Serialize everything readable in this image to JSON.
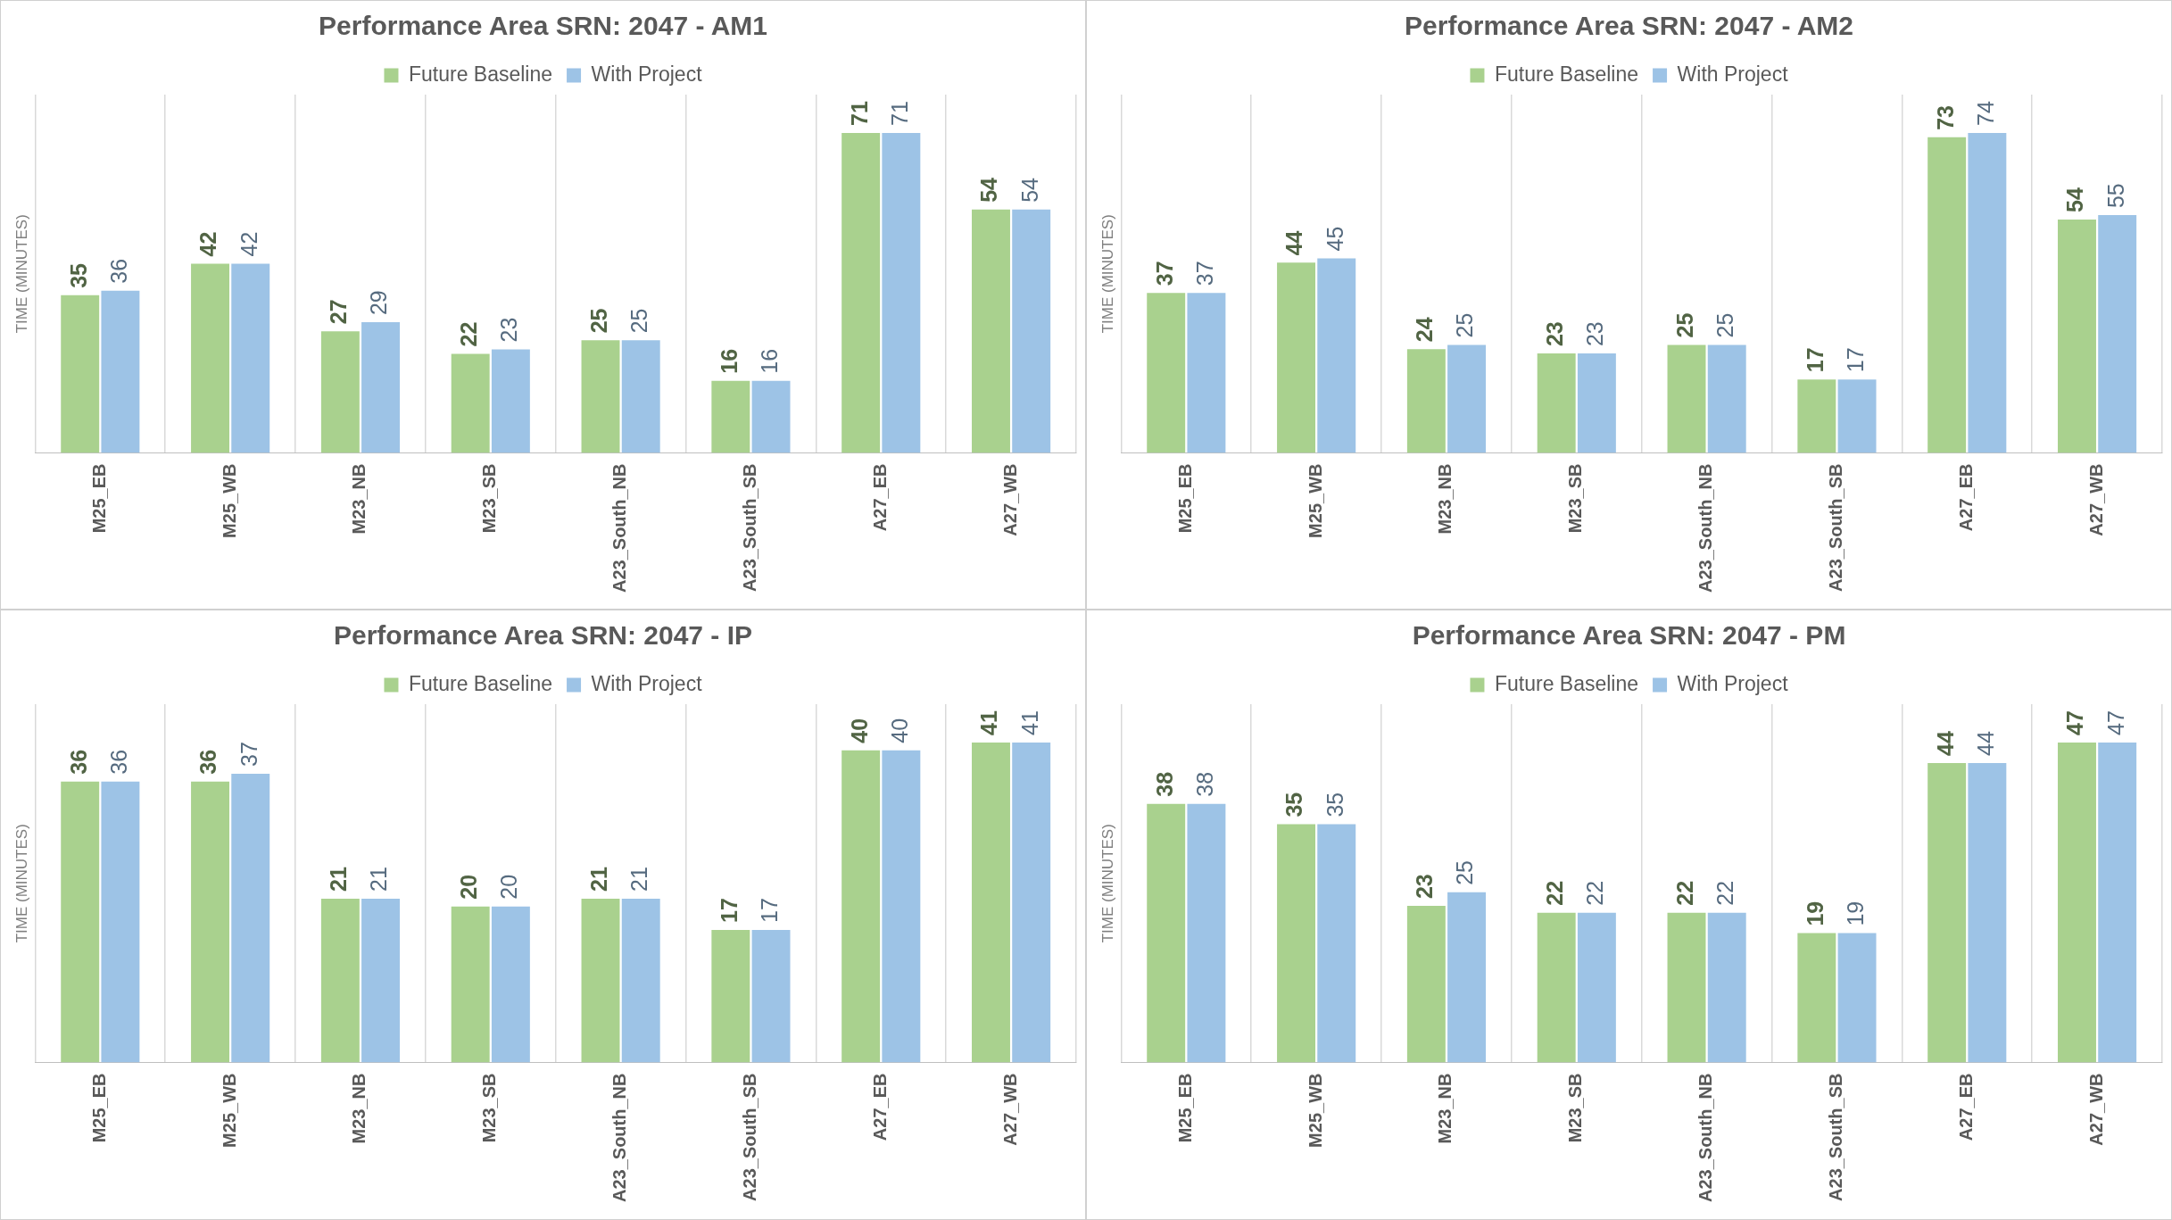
{
  "chart_data": [
    {
      "type": "bar",
      "title": "Performance Area SRN: 2047 - AM1",
      "ylabel": "TIME (MINUTES)",
      "categories": [
        "M25_EB",
        "M25_WB",
        "M23_NB",
        "M23_SB",
        "A23_South_NB",
        "A23_South_SB",
        "A27_EB",
        "A27_WB"
      ],
      "series": [
        {
          "name": "Future Baseline",
          "color": "#a9d18e",
          "values": [
            35,
            42,
            27,
            22,
            25,
            16,
            71,
            54
          ]
        },
        {
          "name": "With Project",
          "color": "#9dc3e6",
          "values": [
            36,
            42,
            29,
            23,
            25,
            16,
            71,
            54
          ]
        }
      ],
      "data_labels": true,
      "legend": "top",
      "grid": "x",
      "tick_labels": "x"
    },
    {
      "type": "bar",
      "title": "Performance Area SRN: 2047 - AM2",
      "ylabel": "TIME (MINUTES)",
      "categories": [
        "M25_EB",
        "M25_WB",
        "M23_NB",
        "M23_SB",
        "A23_South_NB",
        "A23_South_SB",
        "A27_EB",
        "A27_WB"
      ],
      "series": [
        {
          "name": "Future Baseline",
          "color": "#a9d18e",
          "values": [
            37,
            44,
            24,
            23,
            25,
            17,
            73,
            54
          ]
        },
        {
          "name": "With Project",
          "color": "#9dc3e6",
          "values": [
            37,
            45,
            25,
            23,
            25,
            17,
            74,
            55
          ]
        }
      ],
      "data_labels": true,
      "legend": "top",
      "grid": "x",
      "tick_labels": "x"
    },
    {
      "type": "bar",
      "title": "Performance Area SRN: 2047 - IP",
      "ylabel": "TIME (MINUTES)",
      "categories": [
        "M25_EB",
        "M25_WB",
        "M23_NB",
        "M23_SB",
        "A23_South_NB",
        "A23_South_SB",
        "A27_EB",
        "A27_WB"
      ],
      "series": [
        {
          "name": "Future Baseline",
          "color": "#a9d18e",
          "values": [
            36,
            36,
            21,
            20,
            21,
            17,
            40,
            41
          ]
        },
        {
          "name": "With Project",
          "color": "#9dc3e6",
          "values": [
            36,
            37,
            21,
            20,
            21,
            17,
            40,
            41
          ]
        }
      ],
      "data_labels": true,
      "legend": "top",
      "grid": "x",
      "tick_labels": "x"
    },
    {
      "type": "bar",
      "title": "Performance Area SRN: 2047 - PM",
      "ylabel": "TIME (MINUTES)",
      "categories": [
        "M25_EB",
        "M25_WB",
        "M23_NB",
        "M23_SB",
        "A23_South_NB",
        "A23_South_SB",
        "A27_EB",
        "A27_WB"
      ],
      "series": [
        {
          "name": "Future Baseline",
          "color": "#a9d18e",
          "values": [
            38,
            35,
            23,
            22,
            22,
            19,
            44,
            47
          ]
        },
        {
          "name": "With Project",
          "color": "#9dc3e6",
          "values": [
            38,
            35,
            25,
            22,
            22,
            19,
            44,
            47
          ]
        }
      ],
      "data_labels": true,
      "legend": "top",
      "grid": "x",
      "tick_labels": "x"
    }
  ]
}
